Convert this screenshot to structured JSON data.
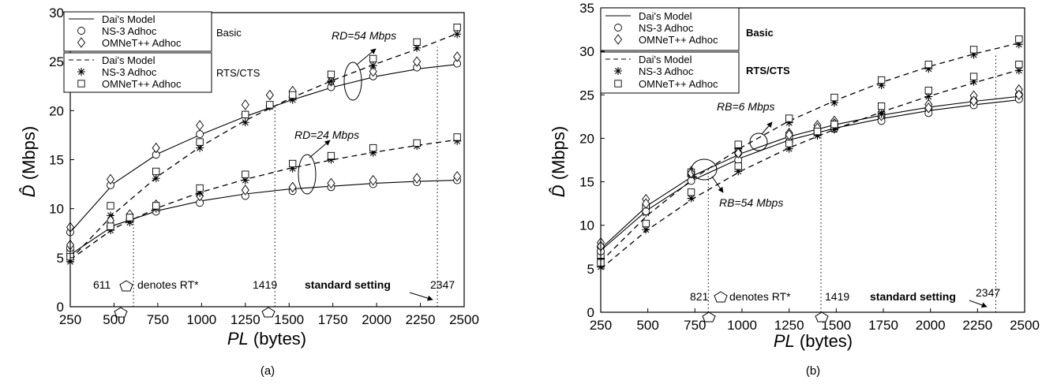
{
  "chart_data": [
    {
      "type": "line",
      "caption": "(a)",
      "xlabel": "PL (bytes)",
      "ylabel": "D̂ (Mbps)",
      "xlim": [
        250,
        2500
      ],
      "ylim": [
        0,
        30
      ],
      "xticks": [
        250,
        500,
        750,
        1000,
        1250,
        1500,
        1750,
        2000,
        2250,
        2500
      ],
      "yticks": [
        0,
        5,
        10,
        15,
        20,
        25,
        30
      ],
      "legend_groups": [
        {
          "title": "Basic",
          "entries": [
            "Dai's Model",
            "NS-3 Adhoc",
            "OMNeT++ Adhoc"
          ]
        },
        {
          "title": "RTS/CTS",
          "entries": [
            "Dai's Model",
            "NS-3 Adhoc",
            "OMNeT++ Adhoc"
          ]
        }
      ],
      "rate_labels": [
        "RD=54 Mbps",
        "RD=24 Mbps"
      ],
      "annotations": {
        "rt_text": "denotes RT*",
        "setting_text": "standard setting",
        "values": [
          "611",
          "1419",
          "2347"
        ]
      },
      "series": [
        {
          "mode": "Basic",
          "rate": "54 Mbps",
          "kind": "model",
          "x": [
            250,
            500,
            750,
            1000,
            1250,
            1500,
            1750,
            2000,
            2250,
            2450
          ],
          "y": [
            7.6,
            12.6,
            15.6,
            17.6,
            19.4,
            21.0,
            22.4,
            23.5,
            24.3,
            24.7
          ]
        },
        {
          "mode": "Basic",
          "rate": "54 Mbps",
          "kind": "ns3",
          "x": [
            250,
            480,
            740,
            990,
            1250,
            1390,
            1520,
            1740,
            1980,
            2230,
            2460
          ],
          "y": [
            7.6,
            12.4,
            15.5,
            17.6,
            19.6,
            20.5,
            21.4,
            22.4,
            23.5,
            24.4,
            24.8
          ]
        },
        {
          "mode": "Basic",
          "rate": "54 Mbps",
          "kind": "omnet",
          "x": [
            250,
            480,
            740,
            990,
            1250,
            1390,
            1520,
            1740,
            1980,
            2230,
            2460
          ],
          "y": [
            8.1,
            13.0,
            16.2,
            18.5,
            20.6,
            21.6,
            22.0,
            23.0,
            24.0,
            25.0,
            25.5
          ]
        },
        {
          "mode": "RTS/CTS",
          "rate": "54 Mbps",
          "kind": "model",
          "x": [
            250,
            500,
            750,
            1000,
            1250,
            1500,
            1750,
            2000,
            2250,
            2450
          ],
          "y": [
            4.8,
            9.5,
            13.3,
            16.4,
            19.0,
            21.2,
            23.1,
            24.8,
            26.4,
            27.8
          ]
        },
        {
          "mode": "RTS/CTS",
          "rate": "54 Mbps",
          "kind": "ns3",
          "x": [
            250,
            480,
            740,
            990,
            1250,
            1390,
            1520,
            1740,
            1980,
            2230,
            2460
          ],
          "y": [
            4.8,
            9.3,
            13.1,
            16.2,
            18.8,
            20.4,
            21.1,
            23.0,
            24.6,
            26.4,
            27.8
          ]
        },
        {
          "mode": "RTS/CTS",
          "rate": "54 Mbps",
          "kind": "omnet",
          "x": [
            250,
            480,
            740,
            990,
            1250,
            1390,
            1520,
            1740,
            1980,
            2230,
            2460
          ],
          "y": [
            5.5,
            10.3,
            13.8,
            16.8,
            19.6,
            20.6,
            21.6,
            23.7,
            25.3,
            27.0,
            28.5
          ]
        },
        {
          "mode": "Basic",
          "rate": "24 Mbps",
          "kind": "model",
          "x": [
            250,
            500,
            750,
            1000,
            1250,
            1500,
            1750,
            2000,
            2250,
            2450
          ],
          "y": [
            5.3,
            8.3,
            9.8,
            10.8,
            11.5,
            12.0,
            12.3,
            12.6,
            12.8,
            12.9
          ]
        },
        {
          "mode": "Basic",
          "rate": "24 Mbps",
          "kind": "ns3",
          "x": [
            250,
            480,
            590,
            740,
            990,
            1250,
            1520,
            1740,
            1980,
            2230,
            2460
          ],
          "y": [
            6.0,
            8.2,
            8.9,
            9.7,
            10.6,
            11.3,
            11.8,
            12.2,
            12.5,
            12.7,
            12.9
          ]
        },
        {
          "mode": "Basic",
          "rate": "24 Mbps",
          "kind": "omnet",
          "x": [
            250,
            480,
            590,
            740,
            990,
            1250,
            1520,
            1740,
            1980,
            2230,
            2460
          ],
          "y": [
            6.3,
            8.8,
            9.4,
            10.4,
            11.3,
            11.9,
            12.2,
            12.6,
            12.9,
            13.1,
            13.3
          ]
        },
        {
          "mode": "RTS/CTS",
          "rate": "24 Mbps",
          "kind": "model",
          "x": [
            250,
            500,
            750,
            1000,
            1250,
            1500,
            1750,
            2000,
            2250,
            2450
          ],
          "y": [
            4.8,
            8.0,
            10.1,
            11.7,
            13.0,
            14.1,
            15.0,
            15.8,
            16.5,
            17.0
          ]
        },
        {
          "mode": "RTS/CTS",
          "rate": "24 Mbps",
          "kind": "ns3",
          "x": [
            250,
            480,
            590,
            740,
            990,
            1250,
            1520,
            1740,
            1980,
            2230,
            2460
          ],
          "y": [
            4.6,
            7.8,
            8.6,
            10.0,
            11.6,
            12.9,
            14.1,
            15.0,
            15.7,
            16.4,
            16.9
          ]
        },
        {
          "mode": "RTS/CTS",
          "rate": "24 Mbps",
          "kind": "omnet",
          "x": [
            250,
            480,
            590,
            740,
            990,
            1250,
            1520,
            1740,
            1980,
            2230,
            2460
          ],
          "y": [
            5.1,
            8.2,
            9.1,
            10.3,
            12.1,
            13.5,
            14.6,
            15.4,
            16.2,
            16.7,
            17.3
          ]
        }
      ]
    },
    {
      "type": "line",
      "caption": "(b)",
      "xlabel": "PL (bytes)",
      "ylabel": "D̂ (Mbps)",
      "xlim": [
        250,
        2500
      ],
      "ylim": [
        0,
        35
      ],
      "xticks": [
        250,
        500,
        750,
        1000,
        1250,
        1500,
        1750,
        2000,
        2250,
        2500
      ],
      "yticks": [
        0,
        5,
        10,
        15,
        20,
        25,
        30,
        35
      ],
      "legend_groups": [
        {
          "title": "Basic",
          "entries": [
            "Dai's Model",
            "NS-3 Adhoc",
            "OMNeT++ Adhoc"
          ]
        },
        {
          "title": "RTS/CTS",
          "entries": [
            "Dai's Model",
            "NS-3 Adhoc",
            "OMNeT++ Adhoc"
          ]
        }
      ],
      "rate_labels": [
        "RB=6 Mbps",
        "RB=54 Mbps"
      ],
      "annotations": {
        "rt_text": "denotes RT*",
        "setting_text": "standard setting",
        "values": [
          "821",
          "1419",
          "2347"
        ]
      },
      "series": [
        {
          "mode": "Basic",
          "rate": "6 Mbps",
          "kind": "model",
          "x": [
            250,
            500,
            750,
            1000,
            1250,
            1500,
            1750,
            2000,
            2250,
            2460
          ],
          "y": [
            7.3,
            12.3,
            15.8,
            18.3,
            20.2,
            21.6,
            22.7,
            23.6,
            24.3,
            24.8
          ]
        },
        {
          "mode": "Basic",
          "rate": "6 Mbps",
          "kind": "ns3",
          "x": [
            250,
            490,
            730,
            980,
            1250,
            1400,
            1490,
            1740,
            1990,
            2230,
            2470
          ],
          "y": [
            7.5,
            12.2,
            15.8,
            18.3,
            20.2,
            21.0,
            21.5,
            22.4,
            23.4,
            24.3,
            25.0
          ]
        },
        {
          "mode": "Basic",
          "rate": "6 Mbps",
          "kind": "omnet",
          "x": [
            250,
            490,
            730,
            980,
            1250,
            1400,
            1490,
            1740,
            1990,
            2230,
            2470
          ],
          "y": [
            8.0,
            13.0,
            16.2,
            18.8,
            20.6,
            21.5,
            22.0,
            23.0,
            23.9,
            24.9,
            25.6
          ]
        },
        {
          "mode": "RTS/CTS",
          "rate": "6 Mbps",
          "kind": "model",
          "x": [
            250,
            500,
            750,
            1000,
            1250,
            1500,
            1750,
            2000,
            2250,
            2460
          ],
          "y": [
            5.8,
            11.2,
            15.5,
            19.0,
            22.0,
            24.4,
            26.5,
            28.3,
            29.8,
            30.9
          ]
        },
        {
          "mode": "RTS/CTS",
          "rate": "6 Mbps",
          "kind": "ns3",
          "x": [
            250,
            490,
            730,
            980,
            1250,
            1490,
            1740,
            1990,
            2230,
            2470
          ],
          "y": [
            6.1,
            11.4,
            15.6,
            18.8,
            21.8,
            24.1,
            26.1,
            28.0,
            29.6,
            30.8
          ]
        },
        {
          "mode": "RTS/CTS",
          "rate": "6 Mbps",
          "kind": "omnet",
          "x": [
            250,
            490,
            730,
            980,
            1250,
            1490,
            1740,
            1990,
            2230,
            2470
          ],
          "y": [
            6.6,
            12.0,
            16.1,
            19.3,
            22.3,
            24.7,
            26.7,
            28.5,
            30.2,
            31.4
          ]
        },
        {
          "mode": "Basic",
          "rate": "54 Mbps",
          "kind": "model",
          "x": [
            250,
            500,
            750,
            1000,
            1250,
            1500,
            1750,
            2000,
            2250,
            2460
          ],
          "y": [
            7.1,
            11.8,
            15.3,
            17.8,
            19.8,
            21.2,
            22.3,
            23.2,
            23.9,
            24.4
          ]
        },
        {
          "mode": "Basic",
          "rate": "54 Mbps",
          "kind": "ns3",
          "x": [
            250,
            490,
            730,
            980,
            1250,
            1400,
            1490,
            1740,
            1990,
            2230,
            2470
          ],
          "y": [
            7.0,
            11.6,
            15.1,
            17.5,
            19.6,
            20.6,
            21.1,
            22.0,
            22.9,
            23.8,
            24.5
          ]
        },
        {
          "mode": "Basic",
          "rate": "54 Mbps",
          "kind": "omnet",
          "x": [
            250,
            490,
            730,
            980,
            1250,
            1400,
            1490,
            1740,
            1990,
            2230,
            2470
          ],
          "y": [
            7.6,
            12.5,
            16.0,
            18.3,
            20.4,
            21.2,
            21.7,
            22.6,
            23.5,
            24.3,
            25.0
          ]
        },
        {
          "mode": "RTS/CTS",
          "rate": "54 Mbps",
          "kind": "model",
          "x": [
            250,
            500,
            750,
            1000,
            1250,
            1500,
            1750,
            2000,
            2250,
            2460
          ],
          "y": [
            5.0,
            9.5,
            13.2,
            16.3,
            18.9,
            21.1,
            23.1,
            24.9,
            26.5,
            27.8
          ]
        },
        {
          "mode": "RTS/CTS",
          "rate": "54 Mbps",
          "kind": "ns3",
          "x": [
            250,
            490,
            730,
            980,
            1250,
            1400,
            1490,
            1740,
            1990,
            2230,
            2470
          ],
          "y": [
            5.2,
            9.5,
            13.1,
            16.2,
            18.8,
            20.3,
            21.0,
            22.8,
            24.8,
            26.5,
            27.8
          ]
        },
        {
          "mode": "RTS/CTS",
          "rate": "54 Mbps",
          "kind": "omnet",
          "x": [
            250,
            490,
            730,
            980,
            1250,
            1400,
            1490,
            1740,
            1990,
            2230,
            2470
          ],
          "y": [
            5.7,
            10.2,
            13.8,
            16.8,
            19.4,
            20.8,
            21.6,
            23.7,
            25.5,
            27.1,
            28.5
          ]
        }
      ]
    }
  ]
}
